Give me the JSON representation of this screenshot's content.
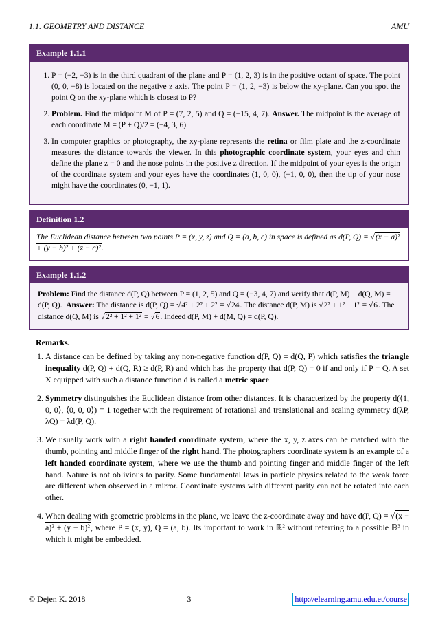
{
  "header": {
    "left": "1.1. GEOMETRY AND DISTANCE",
    "right": "AMU"
  },
  "example1": {
    "title": "Example 1.1.1",
    "items": [
      "P = (−2, −3) is in the third quadrant of the plane and P = (1, 2, 3) is in the positive octant of space. The point (0, 0, −8) is located on the negative z axis. The point P = (1, 2, −3) is below the xy-plane. Can you spot the point Q on the xy-plane which is closest to P?",
      "<b>Problem.</b> Find the midpoint M of P = (7, 2, 5) and Q = (−15, 4, 7). <b>Answer.</b> The midpoint is the average of each coordinate M = (P + Q)/2 = (−4, 3, 6).",
      "In computer graphics or photography, the xy-plane represents the <b>retina</b> or film plate and the z-coordinate measures the distance towards the viewer. In this <b>photographic coordinate system</b>, your eyes and chin define the plane z = 0 and the nose points in the positive z direction. If the midpoint of your eyes is the origin of the coordinate system and your eyes have the coordinates (1, 0, 0), (−1, 0, 0), then the tip of your nose might have the coordinates (0, −1, 1)."
    ]
  },
  "definition": {
    "title": "Definition 1.2",
    "body": "The Euclidean distance between two points P = (x, y, z) and Q = (a, b, c) in space is defined as d(P, Q) = √<span class=\"sqrt\">(x − a)² + (y − b)² + (z − c)²</span>."
  },
  "example2": {
    "title": "Example 1.1.2",
    "body": "<b>Problem:</b> Find the distance d(P, Q) between P = (1, 2, 5) and Q = (−3, 4, 7) and verify that d(P, M) + d(Q, M) = d(P, Q). &nbsp;<b>Answer:</b> The distance is d(P, Q) = √<span class=\"sqrt\">4² + 2² + 2²</span> = √<span class=\"sqrt\">24</span>. The distance d(P, M) is √<span class=\"sqrt\">2² + 1² + 1²</span> = √<span class=\"sqrt\">6</span>. The distance d(Q, M) is √<span class=\"sqrt\">2² + 1² + 1²</span> = √<span class=\"sqrt\">6</span>. Indeed d(P, M) + d(M, Q) = d(P, Q)."
  },
  "remarks_title": "Remarks.",
  "remarks": [
    "A distance can be defined by taking any non-negative function d(P, Q) = d(Q, P) which satisfies the <b>triangle inequality</b> d(P, Q) + d(Q, R) ≥ d(P, R) and which has the property that d(P, Q) = 0 if and only if P = Q. A set X equipped with such a distance function d is called a <b>metric space</b>.",
    "<b>Symmetry</b> distinguishes the Euclidean distance from other distances. It is characterized by the property d(⟨1, 0, 0⟩, ⟨0, 0, 0⟩) = 1 together with the requirement of rotational and translational and scaling symmetry d(λP, λQ) = λd(P, Q).",
    "We usually work with a <b>right handed coordinate system</b>, where the x, y, z axes can be matched with the thumb, pointing and middle finger of the <b>right hand</b>. The photographers coordinate system is an example of a <b>left handed coordinate system</b>, where we use the thumb and pointing finger and middle finger of the left hand. Nature is not oblivious to parity. Some fundamental laws in particle physics related to the weak force are different when observed in a mirror. Coordinate systems with different parity can not be rotated into each other.",
    "When dealing with geometric problems in the plane, we leave the z-coordinate away and have d(P, Q) = √<span class=\"sqrt\">(x − a)² + (y − b)²</span>, where P = (x, y), Q = (a, b). Its important to work in ℝ² without referring to a possible ℝ³ in which it might be embedded."
  ],
  "footer": {
    "copyright": "© Dejen K. 2018",
    "page": "3",
    "url": "http://elearning.amu.edu.et/course"
  }
}
